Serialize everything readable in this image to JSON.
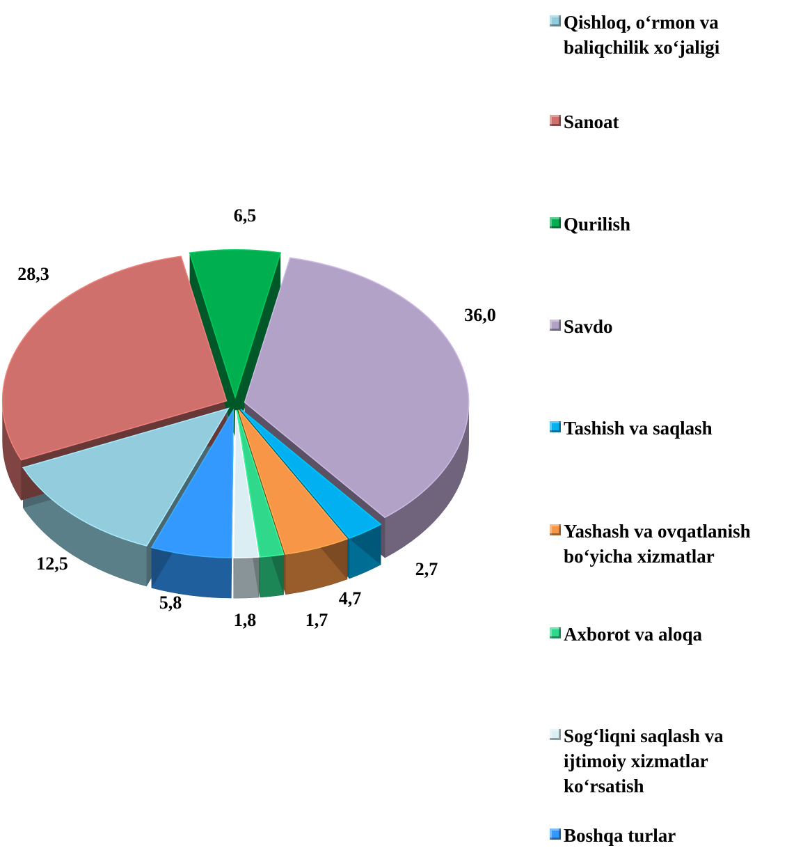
{
  "chart_data": {
    "type": "pie",
    "categories": [
      "Qishloq, o‘rmon va baliqchilik xo‘jaligi",
      "Sanoat",
      "Qurilish",
      "Savdo",
      "Tashish va saqlash",
      "Yashash va ovqatlanish bo‘yicha xizmatlar",
      "Axborot va aloqa",
      "Sog‘liqni saqlash va ijtimoiy xizmatlar ko‘rsatish",
      "Boshqa turlar"
    ],
    "values": [
      12.5,
      28.3,
      6.5,
      36.0,
      2.7,
      4.7,
      1.7,
      1.8,
      5.8
    ],
    "value_labels": [
      "12,5",
      "28,3",
      "6,5",
      "36,0",
      "2,7",
      "4,7",
      "1,7",
      "1,8",
      "5,8"
    ],
    "colors": [
      "#93cddd",
      "#cf706c",
      "#00b050",
      "#b3a2c7",
      "#00b0f0",
      "#f79646",
      "#2fd88a",
      "#dbeef4",
      "#3399ff"
    ],
    "legend": "right"
  }
}
